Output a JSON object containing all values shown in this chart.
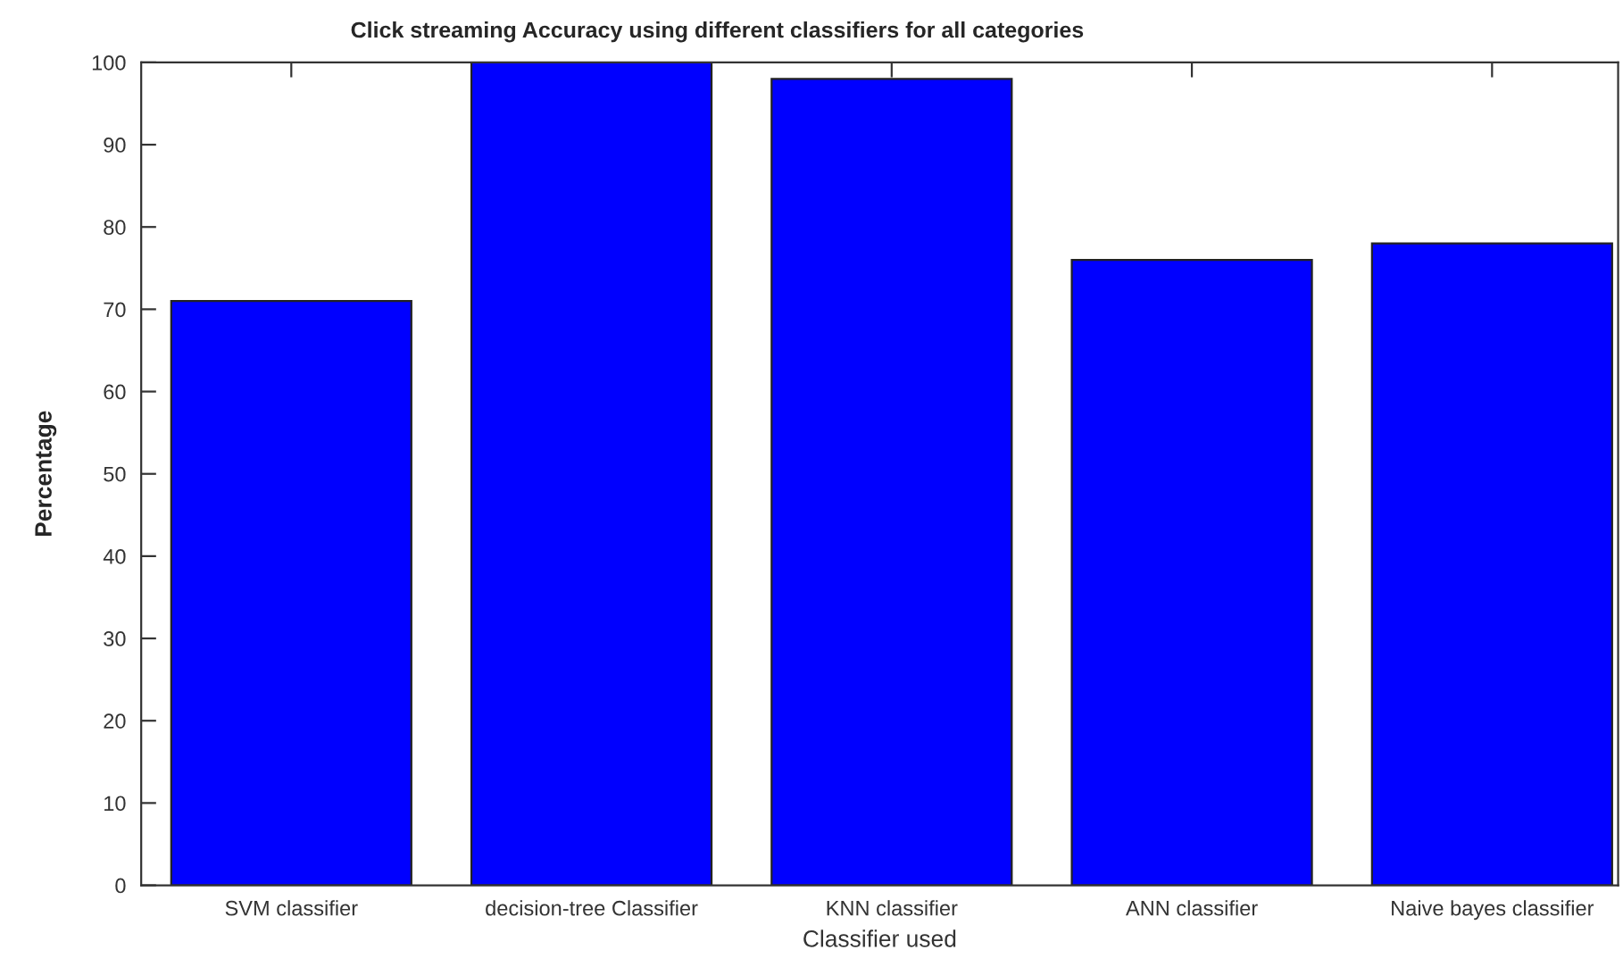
{
  "chart_data": {
    "type": "bar",
    "title": "Click streaming Accuracy using different classifiers for all categories",
    "xlabel": "Classifier used",
    "ylabel": "Percentage",
    "categories": [
      "SVM classifier",
      "decision-tree Classifier",
      "KNN classifier",
      "ANN classifier",
      "Naive bayes classifier"
    ],
    "values": [
      71,
      100,
      98,
      76,
      78
    ],
    "color": "#0000ff",
    "ylim": [
      0,
      100
    ],
    "yticks": [
      0,
      10,
      20,
      30,
      40,
      50,
      60,
      70,
      80,
      90,
      100
    ],
    "grid": false,
    "legend": false
  }
}
